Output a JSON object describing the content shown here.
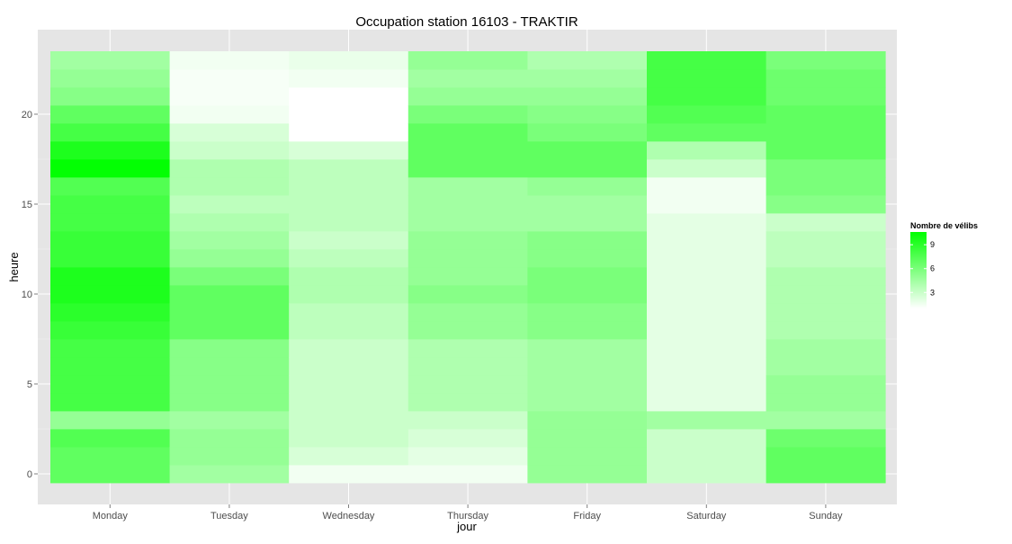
{
  "chart_data": {
    "type": "heatmap",
    "title": "Occupation station 16103 - TRAKTIR",
    "xlabel": "jour",
    "ylabel": "heure",
    "categories": [
      "Monday",
      "Tuesday",
      "Wednesday",
      "Thursday",
      "Friday",
      "Saturday",
      "Sunday"
    ],
    "hours": [
      0,
      1,
      2,
      3,
      4,
      5,
      6,
      7,
      8,
      9,
      10,
      11,
      12,
      13,
      14,
      15,
      16,
      17,
      18,
      19,
      20,
      21,
      22,
      23
    ],
    "y_ticks": [
      0,
      5,
      10,
      15,
      20
    ],
    "ylim": [
      -0.5,
      23.5
    ],
    "grid": true,
    "legend": {
      "title": "Nombre de vélibs",
      "ticks": [
        3,
        6,
        9
      ],
      "min": 1,
      "max": 10.6,
      "low_color": "#ffffff",
      "high_color": "#00ff00",
      "position": "right"
    },
    "values": {
      "Monday": [
        7.0,
        7.0,
        7.5,
        5.0,
        8.0,
        8.0,
        8.0,
        8.0,
        8.5,
        9.0,
        9.5,
        9.5,
        8.5,
        8.5,
        8.0,
        8.0,
        7.5,
        10.5,
        9.5,
        8.0,
        7.0,
        5.5,
        5.0,
        4.5
      ],
      "Tuesday": [
        4.5,
        5.0,
        5.0,
        4.5,
        5.5,
        5.5,
        5.5,
        5.5,
        7.0,
        7.0,
        7.0,
        6.0,
        5.0,
        4.5,
        4.0,
        3.5,
        4.0,
        4.0,
        3.0,
        2.5,
        1.5,
        1.3,
        1.3,
        1.5
      ],
      "Wednesday": [
        1.5,
        2.5,
        3.0,
        3.0,
        3.0,
        3.0,
        3.0,
        3.0,
        3.5,
        3.5,
        4.0,
        4.0,
        3.5,
        3.0,
        3.5,
        3.5,
        3.5,
        3.5,
        2.5,
        1.0,
        1.0,
        1.0,
        1.5,
        1.8
      ],
      "Thursday": [
        1.5,
        2.0,
        2.5,
        3.0,
        4.0,
        4.0,
        4.0,
        4.0,
        5.0,
        5.0,
        5.5,
        5.0,
        5.0,
        5.0,
        4.5,
        4.5,
        4.5,
        7.0,
        7.0,
        7.0,
        6.0,
        5.0,
        4.5,
        5.0
      ],
      "Friday": [
        5.0,
        5.0,
        5.0,
        5.0,
        4.5,
        4.5,
        4.5,
        4.5,
        5.5,
        5.5,
        6.0,
        6.0,
        5.5,
        5.5,
        4.5,
        4.5,
        5.0,
        7.0,
        7.0,
        6.0,
        5.5,
        5.0,
        4.5,
        4.0
      ],
      "Saturday": [
        3.0,
        3.0,
        3.0,
        4.5,
        2.0,
        2.0,
        2.0,
        2.0,
        2.0,
        2.0,
        2.0,
        2.0,
        2.0,
        2.0,
        2.0,
        1.5,
        1.5,
        3.0,
        4.0,
        7.0,
        7.5,
        8.0,
        8.0,
        8.0
      ],
      "Sunday": [
        7.0,
        7.0,
        6.5,
        4.5,
        5.0,
        5.0,
        4.5,
        4.5,
        4.0,
        4.0,
        4.0,
        4.0,
        3.5,
        3.5,
        3.0,
        5.5,
        6.0,
        6.0,
        7.0,
        7.0,
        7.0,
        6.5,
        6.5,
        6.0
      ]
    }
  }
}
